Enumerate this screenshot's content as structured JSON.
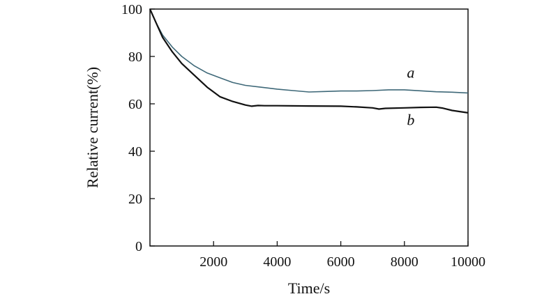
{
  "chart_data": {
    "type": "line",
    "xlabel": "Time/s",
    "ylabel": "Relative current(%)",
    "xlim": [
      0,
      10000
    ],
    "ylim": [
      0,
      100
    ],
    "xticks": [
      2000,
      4000,
      6000,
      8000,
      10000
    ],
    "yticks": [
      0,
      20,
      40,
      60,
      80,
      100
    ],
    "grid": false,
    "series": [
      {
        "name": "a",
        "color": "#3e6878",
        "label_at": [
          8200,
          71
        ],
        "x": [
          0,
          200,
          400,
          700,
          1000,
          1400,
          1800,
          2200,
          2600,
          3000,
          3500,
          4000,
          4500,
          5000,
          5500,
          6000,
          6500,
          7000,
          7500,
          8000,
          8500,
          9000,
          9500,
          10000
        ],
        "y": [
          100,
          94,
          89,
          84,
          80,
          76,
          73,
          71,
          69,
          67.8,
          67,
          66.2,
          65.6,
          65,
          65.2,
          65.4,
          65.4,
          65.6,
          65.9,
          65.9,
          65.5,
          65.1,
          64.9,
          64.6
        ]
      },
      {
        "name": "b",
        "color": "#111111",
        "label_at": [
          8200,
          51
        ],
        "x": [
          0,
          200,
          400,
          700,
          1000,
          1400,
          1800,
          2200,
          2600,
          3000,
          3200,
          3400,
          3600,
          4000,
          5000,
          6000,
          6500,
          7000,
          7200,
          7400,
          8000,
          8500,
          9000,
          9200,
          9500,
          10000
        ],
        "y": [
          100,
          94,
          88,
          82,
          77,
          72,
          67,
          63,
          61,
          59.5,
          59,
          59.3,
          59.2,
          59.2,
          59.1,
          59,
          58.7,
          58.3,
          57.8,
          58.1,
          58.3,
          58.5,
          58.6,
          58.2,
          57.2,
          56.2
        ]
      }
    ]
  }
}
